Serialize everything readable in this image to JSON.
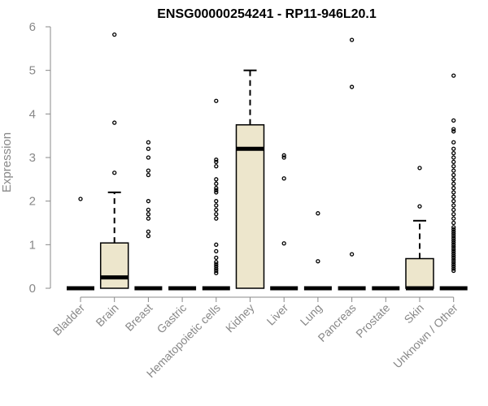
{
  "chart_data": {
    "type": "boxplot",
    "title": "ENSG00000254241 - RP11-946L20.1",
    "ylabel": "Expression",
    "xlabel": "",
    "ylim": [
      0,
      6
    ],
    "yticks": [
      "0",
      "1",
      "2",
      "3",
      "4",
      "5",
      "6"
    ],
    "grid": false,
    "legend": "none",
    "colors": {
      "box_fill": "#ede6cc",
      "stroke": "#000000",
      "axis": "#888888",
      "text": "#888888",
      "title": "#000000"
    },
    "categories": [
      "Bladder",
      "Brain",
      "Breast",
      "Gastric",
      "Hematopoietic cells",
      "Kidney",
      "Liver",
      "Lung",
      "Pancreas",
      "Prostate",
      "Skin",
      "Unknown / Other"
    ],
    "boxes": [
      {
        "category": "Bladder",
        "q1": 0,
        "median": 0,
        "q3": 0,
        "whisker_low": 0,
        "whisker_high": 0,
        "outliers": [
          2.05
        ]
      },
      {
        "category": "Brain",
        "q1": 0,
        "median": 0.25,
        "q3": 1.04,
        "whisker_low": 0,
        "whisker_high": 2.2,
        "outliers": [
          2.65,
          3.8,
          5.82
        ]
      },
      {
        "category": "Breast",
        "q1": 0,
        "median": 0,
        "q3": 0,
        "whisker_low": 0,
        "whisker_high": 0,
        "outliers": [
          1.2,
          1.3,
          1.6,
          1.7,
          1.8,
          2.0,
          2.6,
          2.7,
          3.0,
          3.2,
          3.35
        ]
      },
      {
        "category": "Gastric",
        "q1": 0,
        "median": 0,
        "q3": 0,
        "whisker_low": 0,
        "whisker_high": 0,
        "outliers": []
      },
      {
        "category": "Hematopoietic cells",
        "q1": 0,
        "median": 0,
        "q3": 0,
        "whisker_low": 0,
        "whisker_high": 0,
        "outliers": [
          0.35,
          0.4,
          0.45,
          0.5,
          0.55,
          0.6,
          0.7,
          0.85,
          1.0,
          1.6,
          1.7,
          1.8,
          1.9,
          2.0,
          2.2,
          2.25,
          2.3,
          2.4,
          2.5,
          2.8,
          2.9,
          2.95,
          4.3
        ]
      },
      {
        "category": "Kidney",
        "q1": 0,
        "median": 3.2,
        "q3": 3.75,
        "whisker_low": 0,
        "whisker_high": 5.0,
        "outliers": []
      },
      {
        "category": "Liver",
        "q1": 0,
        "median": 0,
        "q3": 0,
        "whisker_low": 0,
        "whisker_high": 0,
        "outliers": [
          1.03,
          2.52,
          3.0,
          3.05
        ]
      },
      {
        "category": "Lung",
        "q1": 0,
        "median": 0,
        "q3": 0,
        "whisker_low": 0,
        "whisker_high": 0,
        "outliers": [
          0.62,
          1.72
        ]
      },
      {
        "category": "Pancreas",
        "q1": 0,
        "median": 0,
        "q3": 0,
        "whisker_low": 0,
        "whisker_high": 0,
        "outliers": [
          0.78,
          4.62,
          5.7
        ]
      },
      {
        "category": "Prostate",
        "q1": 0,
        "median": 0,
        "q3": 0,
        "whisker_low": 0,
        "whisker_high": 0,
        "outliers": []
      },
      {
        "category": "Skin",
        "q1": 0,
        "median": 0,
        "q3": 0.68,
        "whisker_low": 0,
        "whisker_high": 1.55,
        "outliers": [
          1.88,
          2.76
        ]
      },
      {
        "category": "Unknown / Other",
        "q1": 0,
        "median": 0,
        "q3": 0,
        "whisker_low": 0,
        "whisker_high": 0,
        "outliers": [
          0.4,
          0.45,
          0.5,
          0.55,
          0.6,
          0.65,
          0.7,
          0.75,
          0.8,
          0.85,
          0.9,
          0.95,
          1.0,
          1.05,
          1.1,
          1.15,
          1.2,
          1.25,
          1.3,
          1.35,
          1.4,
          1.5,
          1.6,
          1.7,
          1.8,
          1.9,
          2.0,
          2.1,
          2.2,
          2.3,
          2.4,
          2.5,
          2.6,
          2.7,
          2.8,
          2.9,
          3.0,
          3.1,
          3.2,
          3.35,
          3.6,
          3.65,
          3.85,
          4.88
        ]
      }
    ]
  }
}
